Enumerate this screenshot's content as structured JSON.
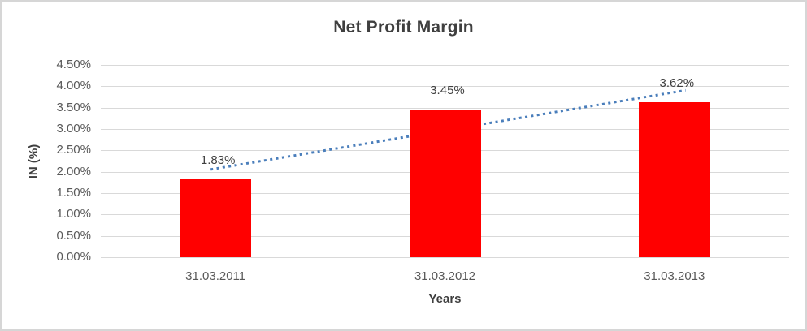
{
  "chart_data": {
    "type": "bar",
    "title": "Net Profit Margin",
    "categories": [
      "31.03.2011",
      "31.03.2012",
      "31.03.2013"
    ],
    "values": [
      1.83,
      3.45,
      3.62
    ],
    "data_labels": [
      "1.83%",
      "3.45%",
      "3.62%"
    ],
    "xlabel": "Years",
    "ylabel": "IN (%)",
    "ylim": [
      0,
      4.5
    ],
    "ytick_step": 0.5,
    "ytick_labels": [
      "0.00%",
      "0.50%",
      "1.00%",
      "1.50%",
      "2.00%",
      "2.50%",
      "3.00%",
      "3.50%",
      "4.00%",
      "4.50%"
    ],
    "grid": true,
    "legend": "none",
    "bar_color": "#ff0000",
    "trendline": {
      "type": "linear",
      "style": "dotted",
      "color": "#4a7ebb"
    },
    "colors": {
      "title_text": "#3f3f3f",
      "tick_text": "#595959",
      "data_label_text": "#404040",
      "gridline": "#d9d9d9",
      "frame_border": "#d6d6d6",
      "background": "#ffffff"
    }
  }
}
